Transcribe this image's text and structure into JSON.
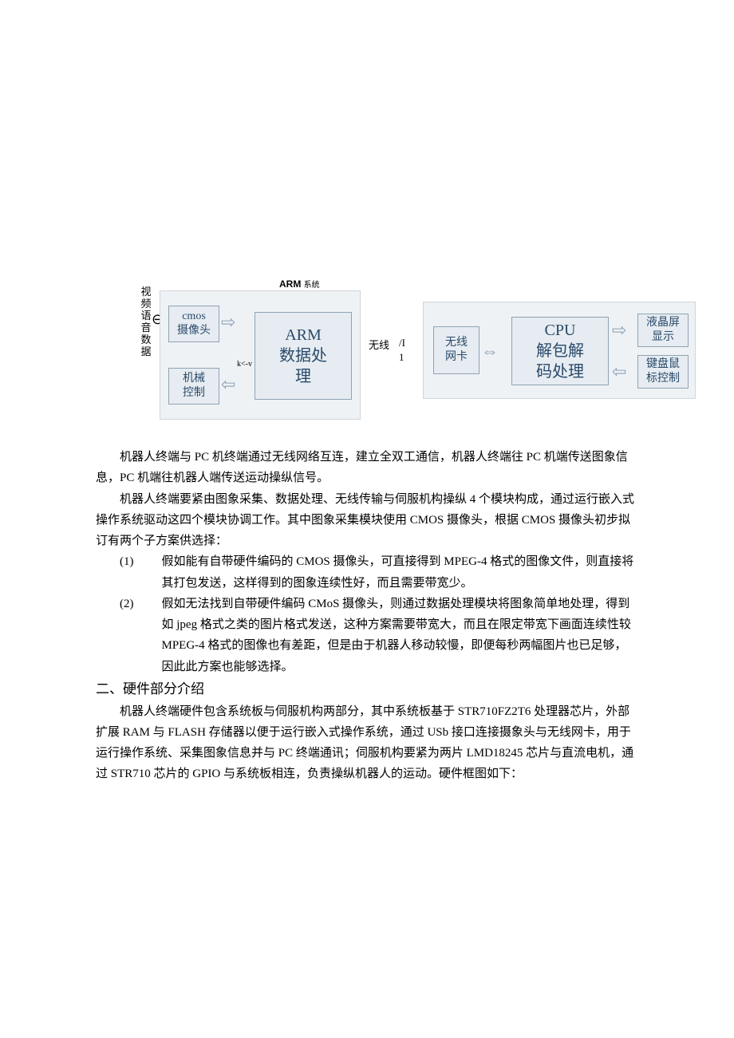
{
  "diagram": {
    "vlabel": "视频语音数据",
    "antenna": "⊖",
    "arm_title_bold": "ARM",
    "arm_title_small": "系统",
    "left": {
      "cmos": "cmos\n摄像头",
      "mech": "机械\n控制",
      "arm": "ARM\n数据处\n理"
    },
    "mid": {
      "wireless": "无线",
      "slash": "/I",
      "one": "1",
      "kv": "k<-v"
    },
    "right": {
      "wlan": "无线\n网卡",
      "cpu": "CPU\n解包解\n码处理",
      "lcd": "液晶屏\n显示",
      "kbm": "键盘鼠\n标控制"
    }
  },
  "para1": "机器人终端与 PC 机终端通过无线网络互连，建立全双工通信，机器人终端往 PC 机端传送图象信息，PC 机端往机器人端传送运动操纵信号。",
  "para2": "机器人终端要紧由图象采集、数据处理、无线传输与伺服机构操纵 4 个模块构成，通过运行嵌入式操作系统驱动这四个模块协调工作。其中图象采集模块使用 CMOS 摄像头，根据 CMOS 摄像头初步拟订有两个子方案供选择：",
  "item1_num": "(1)",
  "item1": "假如能有自带硬件编码的 CMOS 摄像头，可直接得到 MPEG-4 格式的图像文件，则直接将其打包发送，这样得到的图象连续性好，而且需要带宽少。",
  "item2_num": "(2)",
  "item2": "假如无法找到自带硬件编码 CMoS 摄像头，则通过数据处理模块将图象简单地处理，得到如 jpeg 格式之类的图片格式发送，这种方案需要带宽大，而且在限定带宽下画面连续性较 MPEG-4 格式的图像也有差距，但是由于机器人移动较慢，即便每秒两幅图片也已足够，因此此方案也能够选择。",
  "section2": "二、硬件部分介绍",
  "para3": "机器人终端硬件包含系统板与伺服机构两部分，其中系统板基于 STR710FZ2T6 处理器芯片，外部扩展 RAM 与 FLASH 存储器以便于运行嵌入式操作系统，通过 USb 接口连接摄象头与无线网卡，用于运行操作系统、采集图象信息并与 PC 终端通讯；伺服机构要紧为两片 LMD18245 芯片与直流电机，通过 STR710 芯片的 GPIO 与系统板相连，负责操纵机器人的运动。硬件框图如下："
}
